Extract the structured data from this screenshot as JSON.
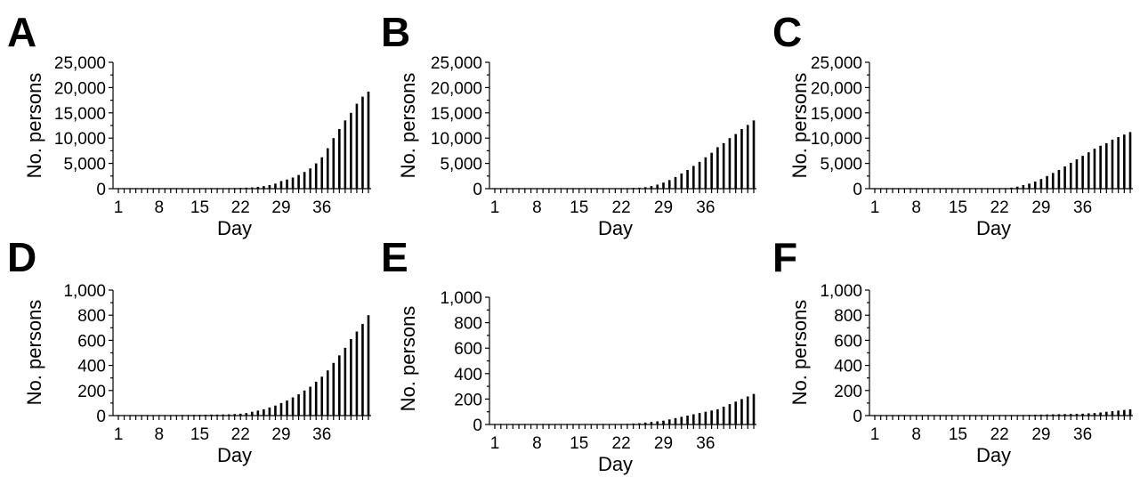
{
  "chart_data": [
    {
      "panel": "A",
      "type": "bar",
      "ylabel": "No. persons",
      "xlabel": "Day",
      "ylim": [
        0,
        25000
      ],
      "yticks": [
        "0",
        "5,000",
        "10,000",
        "15,000",
        "20,000",
        "25,000"
      ],
      "xticks": [
        "1",
        "8",
        "15",
        "22",
        "29",
        "36"
      ],
      "x": [
        1,
        2,
        3,
        4,
        5,
        6,
        7,
        8,
        9,
        10,
        11,
        12,
        13,
        14,
        15,
        16,
        17,
        18,
        19,
        20,
        21,
        22,
        23,
        24,
        25,
        26,
        27,
        28,
        29,
        30,
        31,
        32,
        33,
        34,
        35,
        36,
        37,
        38,
        39,
        40,
        41,
        42,
        43,
        44
      ],
      "values": [
        50,
        50,
        50,
        50,
        50,
        50,
        50,
        50,
        50,
        50,
        50,
        50,
        50,
        50,
        50,
        50,
        60,
        70,
        80,
        100,
        120,
        150,
        200,
        250,
        350,
        500,
        700,
        1000,
        1500,
        1800,
        2200,
        2700,
        3300,
        4000,
        5000,
        6200,
        8000,
        10000,
        11800,
        13500,
        15000,
        16800,
        18200,
        19200
      ]
    },
    {
      "panel": "B",
      "type": "bar",
      "ylabel": "No. persons",
      "xlabel": "Day",
      "ylim": [
        0,
        25000
      ],
      "yticks": [
        "0",
        "5,000",
        "10,000",
        "15,000",
        "20,000",
        "25,000"
      ],
      "xticks": [
        "1",
        "8",
        "15",
        "22",
        "29",
        "36"
      ],
      "x": [
        1,
        2,
        3,
        4,
        5,
        6,
        7,
        8,
        9,
        10,
        11,
        12,
        13,
        14,
        15,
        16,
        17,
        18,
        19,
        20,
        21,
        22,
        23,
        24,
        25,
        26,
        27,
        28,
        29,
        30,
        31,
        32,
        33,
        34,
        35,
        36,
        37,
        38,
        39,
        40,
        41,
        42,
        43,
        44
      ],
      "values": [
        50,
        50,
        50,
        50,
        50,
        50,
        50,
        50,
        50,
        50,
        50,
        50,
        50,
        50,
        50,
        50,
        50,
        50,
        50,
        50,
        60,
        80,
        100,
        150,
        200,
        300,
        500,
        800,
        1200,
        1700,
        2300,
        3000,
        3700,
        4500,
        5300,
        6200,
        7100,
        8200,
        9000,
        10000,
        10800,
        11800,
        12600,
        13500
      ]
    },
    {
      "panel": "C",
      "type": "bar",
      "ylabel": "No. persons",
      "xlabel": "Day",
      "ylim": [
        0,
        25000
      ],
      "yticks": [
        "0",
        "5,000",
        "10,000",
        "15,000",
        "20,000",
        "25,000"
      ],
      "xticks": [
        "1",
        "8",
        "15",
        "22",
        "29",
        "36"
      ],
      "x": [
        1,
        2,
        3,
        4,
        5,
        6,
        7,
        8,
        9,
        10,
        11,
        12,
        13,
        14,
        15,
        16,
        17,
        18,
        19,
        20,
        21,
        22,
        23,
        24,
        25,
        26,
        27,
        28,
        29,
        30,
        31,
        32,
        33,
        34,
        35,
        36,
        37,
        38,
        39,
        40,
        41,
        42,
        43,
        44
      ],
      "values": [
        50,
        50,
        50,
        50,
        50,
        50,
        50,
        50,
        50,
        50,
        50,
        50,
        50,
        50,
        50,
        50,
        50,
        50,
        50,
        50,
        50,
        50,
        100,
        200,
        400,
        700,
        1000,
        1400,
        1900,
        2500,
        3100,
        3700,
        4400,
        5100,
        5800,
        6500,
        7200,
        7900,
        8500,
        9000,
        9700,
        10200,
        10700,
        11200
      ]
    },
    {
      "panel": "D",
      "type": "bar",
      "ylabel": "No. persons",
      "xlabel": "Day",
      "ylim": [
        0,
        1000
      ],
      "yticks": [
        "0",
        "200",
        "400",
        "600",
        "800",
        "1,000"
      ],
      "xticks": [
        "1",
        "8",
        "15",
        "22",
        "29",
        "36"
      ],
      "x": [
        1,
        2,
        3,
        4,
        5,
        6,
        7,
        8,
        9,
        10,
        11,
        12,
        13,
        14,
        15,
        16,
        17,
        18,
        19,
        20,
        21,
        22,
        23,
        24,
        25,
        26,
        27,
        28,
        29,
        30,
        31,
        32,
        33,
        34,
        35,
        36,
        37,
        38,
        39,
        40,
        41,
        42,
        43,
        44
      ],
      "values": [
        2,
        2,
        2,
        2,
        2,
        2,
        3,
        3,
        3,
        4,
        4,
        5,
        5,
        6,
        6,
        7,
        8,
        8,
        9,
        10,
        12,
        15,
        20,
        30,
        40,
        50,
        65,
        80,
        100,
        120,
        145,
        170,
        200,
        230,
        270,
        310,
        360,
        420,
        480,
        540,
        610,
        670,
        730,
        800
      ]
    },
    {
      "panel": "E",
      "type": "bar",
      "ylabel": "No. persons",
      "xlabel": "Day",
      "ylim": [
        0,
        1000
      ],
      "yticks": [
        "0",
        "200",
        "400",
        "600",
        "800",
        "1,000"
      ],
      "xticks": [
        "1",
        "8",
        "15",
        "22",
        "29",
        "36"
      ],
      "x": [
        1,
        2,
        3,
        4,
        5,
        6,
        7,
        8,
        9,
        10,
        11,
        12,
        13,
        14,
        15,
        16,
        17,
        18,
        19,
        20,
        21,
        22,
        23,
        24,
        25,
        26,
        27,
        28,
        29,
        30,
        31,
        32,
        33,
        34,
        35,
        36,
        37,
        38,
        39,
        40,
        41,
        42,
        43,
        44
      ],
      "values": [
        2,
        2,
        2,
        2,
        2,
        2,
        2,
        2,
        2,
        2,
        2,
        2,
        2,
        2,
        2,
        2,
        2,
        2,
        2,
        2,
        2,
        2,
        5,
        8,
        10,
        15,
        20,
        25,
        30,
        40,
        50,
        60,
        70,
        80,
        90,
        100,
        110,
        120,
        140,
        160,
        180,
        200,
        220,
        240
      ]
    },
    {
      "panel": "F",
      "type": "bar",
      "ylabel": "No. persons",
      "xlabel": "Day",
      "ylim": [
        0,
        1000
      ],
      "yticks": [
        "0",
        "200",
        "400",
        "600",
        "800",
        "1,000"
      ],
      "xticks": [
        "1",
        "8",
        "15",
        "22",
        "29",
        "36"
      ],
      "x": [
        1,
        2,
        3,
        4,
        5,
        6,
        7,
        8,
        9,
        10,
        11,
        12,
        13,
        14,
        15,
        16,
        17,
        18,
        19,
        20,
        21,
        22,
        23,
        24,
        25,
        26,
        27,
        28,
        29,
        30,
        31,
        32,
        33,
        34,
        35,
        36,
        37,
        38,
        39,
        40,
        41,
        42,
        43,
        44
      ],
      "values": [
        1,
        1,
        1,
        1,
        1,
        1,
        1,
        1,
        1,
        1,
        1,
        1,
        1,
        1,
        1,
        1,
        1,
        1,
        1,
        1,
        1,
        1,
        2,
        3,
        4,
        5,
        6,
        7,
        8,
        9,
        10,
        11,
        12,
        13,
        14,
        15,
        18,
        20,
        25,
        30,
        35,
        40,
        45,
        50
      ]
    }
  ]
}
